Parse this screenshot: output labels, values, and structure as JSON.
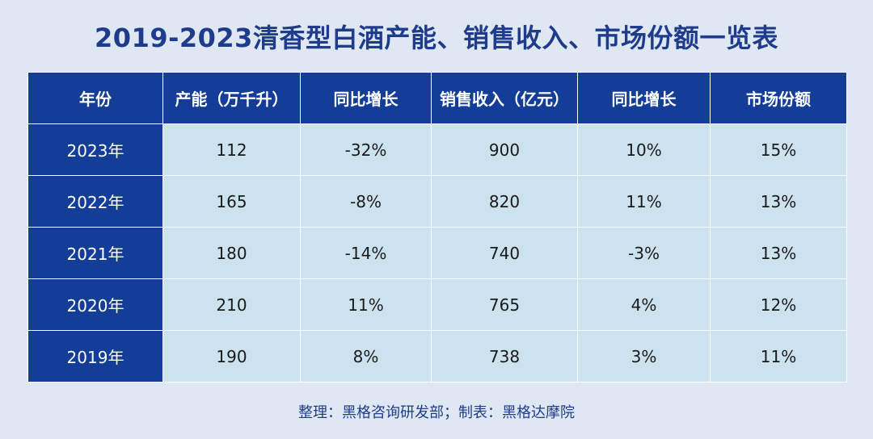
{
  "title": "2019-2023清香型白酒产能、销售收入、市场份额一览表",
  "chart_data": {
    "type": "table",
    "title": "2019-2023清香型白酒产能、销售收入、市场份额一览表",
    "columns": [
      "年份",
      "产能（万千升）",
      "同比增长",
      "销售收入（亿元）",
      "同比增长",
      "市场份额"
    ],
    "rows": [
      [
        "2023年",
        "112",
        "-32%",
        "900",
        "10%",
        "15%"
      ],
      [
        "2022年",
        "165",
        "-8%",
        "820",
        "11%",
        "13%"
      ],
      [
        "2021年",
        "180",
        "-14%",
        "740",
        "-3%",
        "13%"
      ],
      [
        "2020年",
        "210",
        "11%",
        "765",
        "4%",
        "12%"
      ],
      [
        "2019年",
        "190",
        "8%",
        "738",
        "3%",
        "11%"
      ]
    ]
  },
  "footer": "整理：黑格咨询研发部；制表：黑格达摩院"
}
